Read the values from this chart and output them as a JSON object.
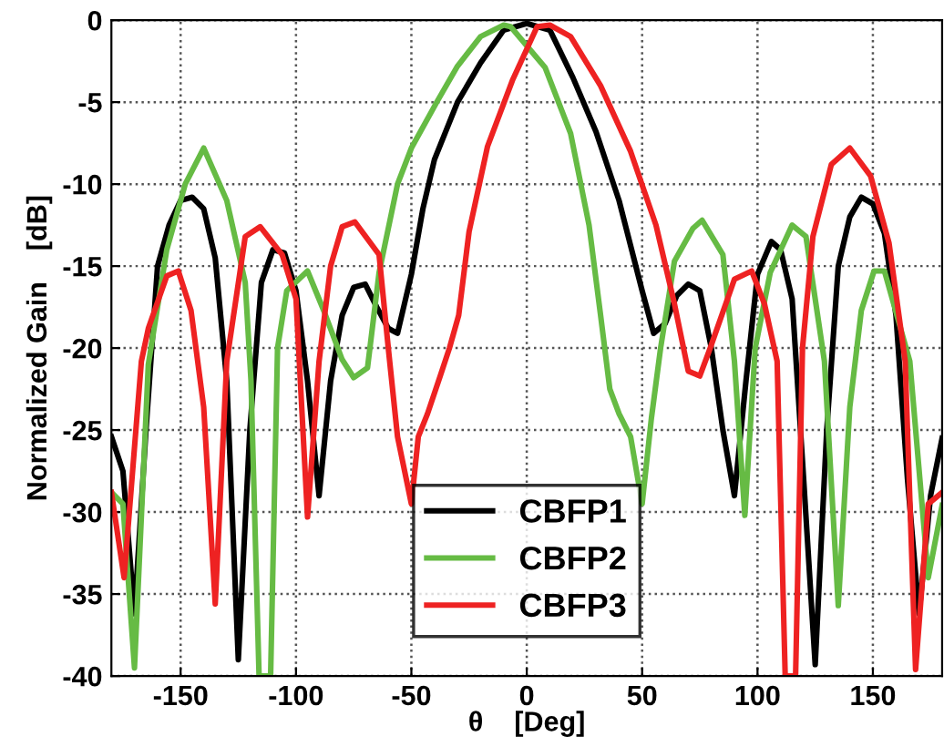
{
  "chart_data": {
    "type": "line",
    "xlabel": "θ    [Deg]",
    "ylabel": "Normalized Gain    [dB]",
    "xlim": [
      -180,
      180
    ],
    "ylim": [
      -40,
      0
    ],
    "xticks": [
      -150,
      -100,
      -50,
      0,
      50,
      100,
      150
    ],
    "yticks": [
      -40,
      -35,
      -30,
      -25,
      -20,
      -15,
      -10,
      -5,
      0
    ],
    "grid": true,
    "legend": "bottom",
    "line_style": "solid",
    "marker": "none",
    "series": [
      {
        "name": "CBFP1",
        "color": "#000000",
        "x": [
          -180,
          -175,
          -170,
          -165,
          -160,
          -155,
          -150,
          -145,
          -140,
          -135,
          -130,
          -125,
          -120,
          -115,
          -110,
          -105,
          -100,
          -95,
          -90,
          -85,
          -80,
          -75,
          -70,
          -65,
          -60,
          -56,
          -50,
          -45,
          -40,
          -30,
          -20,
          -10,
          0,
          10,
          20,
          30,
          40,
          50,
          55,
          60,
          65,
          70,
          75,
          80,
          85,
          90,
          95,
          100,
          106,
          110,
          115,
          120,
          125,
          130,
          135,
          140,
          145,
          150,
          155,
          160,
          165,
          170,
          175,
          180
        ],
        "values": [
          -25.4,
          -27.5,
          -36.2,
          -25,
          -15,
          -12.5,
          -11,
          -10.8,
          -11.5,
          -14.5,
          -22,
          -39,
          -25,
          -16,
          -14,
          -14.2,
          -16.5,
          -22,
          -29,
          -22,
          -18,
          -16.3,
          -16.1,
          -17.5,
          -18.8,
          -19.1,
          -15.5,
          -11.5,
          -8.5,
          -5,
          -2.6,
          -0.6,
          -0.2,
          -0.6,
          -3.5,
          -6.8,
          -11,
          -16.5,
          -19.1,
          -18.5,
          -16.8,
          -16.1,
          -16.5,
          -20,
          -25,
          -29,
          -22,
          -15.5,
          -13.5,
          -14,
          -17,
          -28,
          -39.3,
          -25,
          -15,
          -12,
          -10.8,
          -11.2,
          -13,
          -18,
          -28,
          -36.2,
          -29,
          -25.5
        ]
      },
      {
        "name": "CBFP2",
        "color": "#66bb44",
        "x": [
          -180,
          -175,
          -170,
          -164,
          -156,
          -148,
          -140,
          -130,
          -122,
          -119.5,
          -116,
          -111,
          -108,
          -104,
          -95,
          -88,
          -80,
          -75,
          -69,
          -64,
          -56,
          -50,
          -39,
          -30,
          -20,
          -10,
          -7,
          8,
          19,
          27,
          32,
          36,
          40,
          45,
          50,
          54,
          58,
          64,
          72,
          76,
          85,
          90,
          94.5,
          99,
          105.5,
          115,
          121,
          129,
          135,
          140,
          145,
          150.5,
          155,
          166,
          174,
          180
        ],
        "values": [
          -28.8,
          -29.5,
          -39.5,
          -21,
          -14,
          -10,
          -7.8,
          -11,
          -16,
          -22,
          -40,
          -40,
          -20,
          -16.5,
          -15.3,
          -17.7,
          -20.7,
          -21.8,
          -21.2,
          -15.4,
          -10,
          -7.8,
          -5,
          -2.8,
          -1,
          -0.3,
          -0.4,
          -2.9,
          -6.9,
          -12.5,
          -18,
          -22.5,
          -24,
          -25.4,
          -29.5,
          -24.3,
          -20,
          -14.7,
          -12.7,
          -12.2,
          -14.3,
          -20.8,
          -30.2,
          -20,
          -15.4,
          -12.5,
          -13.2,
          -20.8,
          -35.7,
          -23.6,
          -17.7,
          -15.3,
          -15.3,
          -20.8,
          -34,
          -29.6
        ]
      },
      {
        "name": "CBFP3",
        "color": "#ee2222",
        "x": [
          -180,
          -174.5,
          -167,
          -164,
          -156,
          -151,
          -145.5,
          -140,
          -135,
          -130,
          -122,
          -115.5,
          -106,
          -100,
          -95,
          -90,
          -85,
          -80,
          -74.5,
          -64,
          -60,
          -56,
          -50,
          -47,
          -43,
          -37.5,
          -33.5,
          -29.5,
          -25,
          -17,
          -6,
          4.5,
          10,
          19,
          32,
          45,
          56,
          64,
          70,
          75,
          79.5,
          90,
          97.5,
          103,
          108.5,
          112,
          116.5,
          119.5,
          124,
          132,
          140,
          149,
          157,
          164,
          168.5,
          174,
          180
        ],
        "values": [
          -28.8,
          -34,
          -20.8,
          -18.8,
          -15.6,
          -15.3,
          -17.7,
          -23.6,
          -35.6,
          -20.8,
          -13.2,
          -12.6,
          -14.3,
          -17,
          -30.3,
          -20.8,
          -15,
          -12.6,
          -12.3,
          -14.3,
          -20,
          -25.4,
          -29.5,
          -25.4,
          -24,
          -21.7,
          -20,
          -18,
          -12.9,
          -7.7,
          -3.6,
          -0.4,
          -0.3,
          -1,
          -4,
          -8,
          -12.5,
          -17.3,
          -21.4,
          -21.7,
          -20,
          -15.8,
          -15.3,
          -17.3,
          -20.8,
          -40,
          -40,
          -20,
          -13.2,
          -8.8,
          -7.8,
          -9.5,
          -13.6,
          -20.8,
          -39.6,
          -29.5,
          -28.8
        ]
      }
    ]
  }
}
